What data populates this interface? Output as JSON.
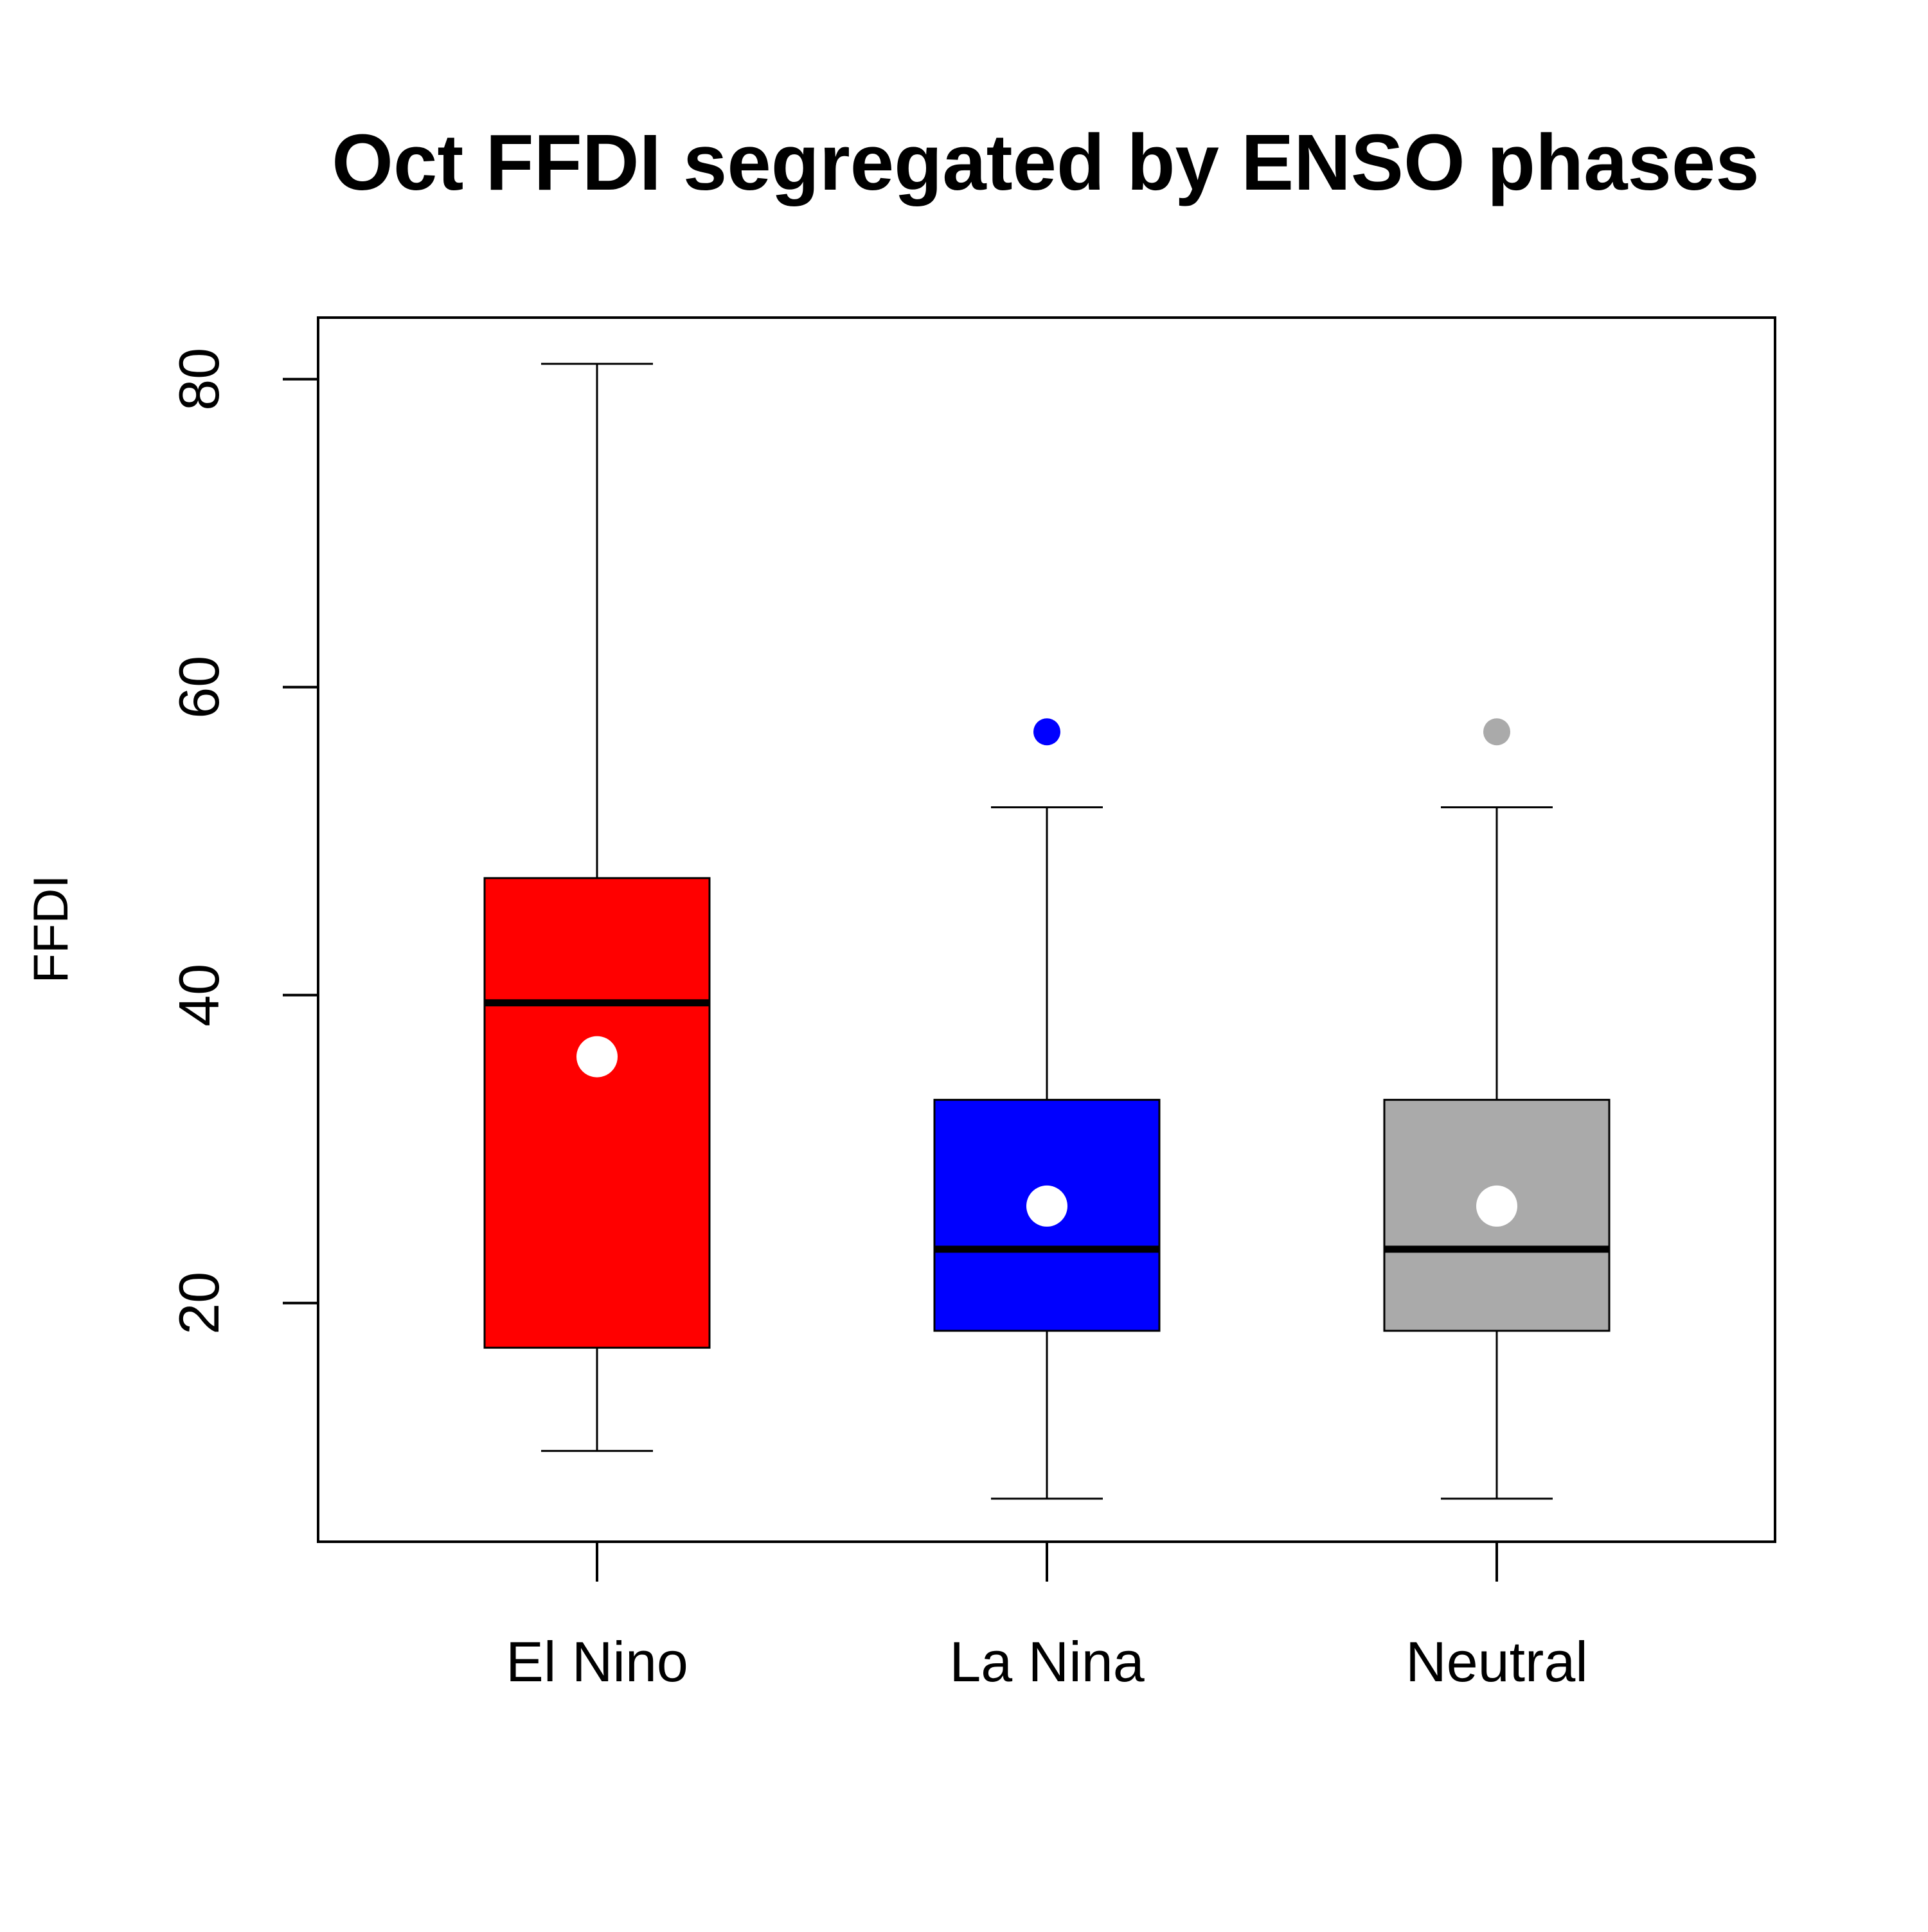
{
  "chart_data": {
    "type": "box",
    "title": "Oct FFDI segregated by ENSO phases",
    "xlabel": "",
    "ylabel": "FFDI",
    "ylim": [
      4.5,
      84
    ],
    "yticks": [
      20,
      40,
      60,
      80
    ],
    "grid": false,
    "categories": [
      "El Nino",
      "La Nina",
      "Neutral"
    ],
    "boxes": [
      {
        "category": "El Nino",
        "whisker_low": 10.4,
        "q1": 17.1,
        "median": 39.5,
        "q3": 47.6,
        "whisker_high": 81.0,
        "mean": 36.0,
        "outliers": [],
        "color": "#ff0000"
      },
      {
        "category": "La Nina",
        "whisker_low": 7.3,
        "q1": 18.2,
        "median": 23.5,
        "q3": 33.2,
        "whisker_high": 52.2,
        "mean": 26.3,
        "outliers": [
          57.1
        ],
        "color": "#0000ff"
      },
      {
        "category": "Neutral",
        "whisker_low": 7.3,
        "q1": 18.2,
        "median": 23.5,
        "q3": 33.2,
        "whisker_high": 52.2,
        "mean": 26.3,
        "outliers": [
          57.1
        ],
        "color": "#aaaaaa"
      }
    ],
    "mean_marker_color": "#ffffff"
  }
}
